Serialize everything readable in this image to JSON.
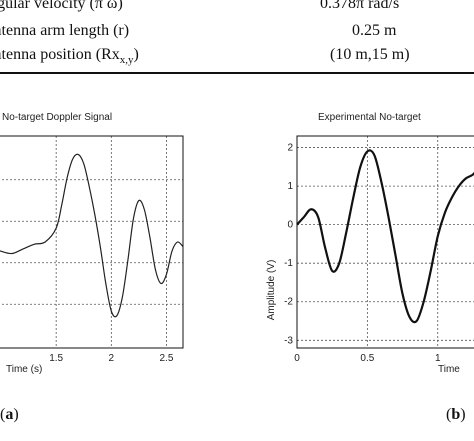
{
  "table": {
    "rows": [
      {
        "param": "angular velocity (π ω)",
        "value": "0.378π rad/s"
      },
      {
        "param": "Antenna arm length (r)",
        "value": "0.25 m"
      },
      {
        "param": "Antenna position (Rx",
        "sub": "x,y",
        "param_end": ")",
        "value": "(10 m,15 m)"
      }
    ]
  },
  "figure_a": {
    "panel_label": "(a)",
    "title": "No-target Doppler Signal",
    "xlabel": "Time (s)"
  },
  "figure_b": {
    "panel_label": "(b)",
    "title": "Experimental No-target",
    "xlabel": "Time",
    "ylabel": "Amplitude (V)"
  },
  "chart_data": [
    {
      "type": "line",
      "title": "No-target Doppler Signal",
      "xlabel": "Time (s)",
      "ylabel": "",
      "xlim": [
        0.9,
        2.65
      ],
      "ylim": [
        -2.2,
        2.4
      ],
      "grid": true,
      "x_ticks": [
        1.5,
        2,
        2.5
      ],
      "x_tick_labels": [
        "1.5",
        "2",
        "2.5"
      ],
      "series": [
        {
          "x": [
            0.9,
            1.0,
            1.1,
            1.2,
            1.3,
            1.4,
            1.5,
            1.55,
            1.6,
            1.65,
            1.7,
            1.75,
            1.8,
            1.85,
            1.9,
            1.95,
            2.0,
            2.05,
            2.1,
            2.15,
            2.2,
            2.25,
            2.3,
            2.35,
            2.4,
            2.45,
            2.5,
            2.55,
            2.6,
            2.65
          ],
          "y": [
            0.0,
            -0.1,
            -0.15,
            -0.05,
            0.05,
            0.1,
            0.4,
            0.9,
            1.5,
            1.9,
            2.0,
            1.8,
            1.3,
            0.7,
            0.0,
            -0.8,
            -1.4,
            -1.5,
            -1.1,
            -0.3,
            0.6,
            1.0,
            0.8,
            0.2,
            -0.5,
            -0.8,
            -0.6,
            -0.1,
            0.1,
            0.0
          ]
        }
      ]
    },
    {
      "type": "line",
      "title": "Experimental No-target",
      "xlabel": "Time",
      "ylabel": "Amplitude (V)",
      "xlim": [
        0,
        1.35
      ],
      "ylim": [
        -3.2,
        2.3
      ],
      "grid": true,
      "x_ticks": [
        0,
        0.5,
        1
      ],
      "x_tick_labels": [
        "0",
        "0.5",
        "1"
      ],
      "y_ticks": [
        2,
        1,
        0,
        -1,
        -2,
        -3
      ],
      "y_tick_labels": [
        "2",
        "1",
        "0",
        "-1",
        "-2",
        "-3"
      ],
      "series": [
        {
          "x": [
            0,
            0.05,
            0.1,
            0.15,
            0.2,
            0.25,
            0.3,
            0.35,
            0.4,
            0.45,
            0.5,
            0.55,
            0.6,
            0.65,
            0.7,
            0.75,
            0.8,
            0.85,
            0.9,
            0.95,
            1.0,
            1.05,
            1.1,
            1.15,
            1.2,
            1.25,
            1.3,
            1.35
          ],
          "y": [
            0.0,
            0.2,
            0.4,
            0.2,
            -0.6,
            -1.2,
            -1.0,
            -0.2,
            0.7,
            1.5,
            1.9,
            1.8,
            1.1,
            0.2,
            -0.8,
            -1.8,
            -2.4,
            -2.5,
            -2.0,
            -1.2,
            -0.3,
            0.3,
            0.7,
            1.0,
            1.2,
            1.3,
            1.5,
            1.6
          ]
        }
      ]
    }
  ]
}
